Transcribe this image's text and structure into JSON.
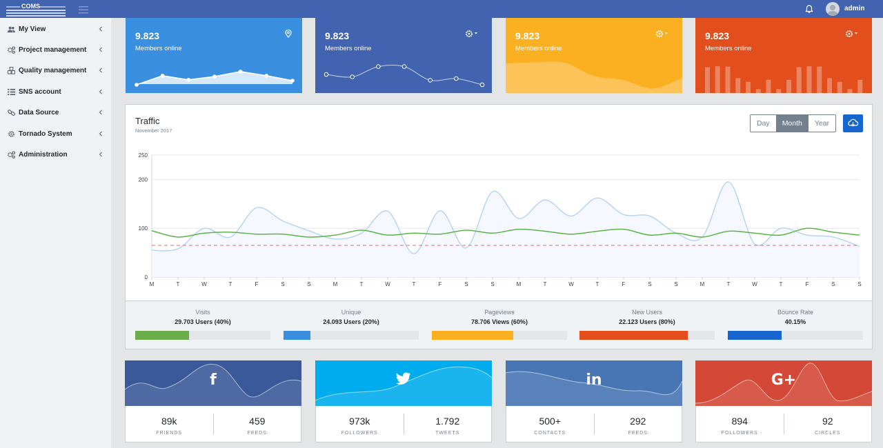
{
  "app": {
    "logo_text": "COMS",
    "user": "admin"
  },
  "sidebar": {
    "items": [
      {
        "label": "My View",
        "icon": "users-icon"
      },
      {
        "label": "Project management",
        "icon": "cogs-icon"
      },
      {
        "label": "Quality management",
        "icon": "cubes-icon"
      },
      {
        "label": "SNS account",
        "icon": "list-icon"
      },
      {
        "label": "Data Source",
        "icon": "link-icon"
      },
      {
        "label": "Tornado System",
        "icon": "gear-icon"
      },
      {
        "label": "Administration",
        "icon": "cogs-icon"
      }
    ]
  },
  "kpis": [
    {
      "value": "9.823",
      "label": "Members online",
      "color": "#3a8fe0",
      "icon": "location-pin-icon",
      "spark": [
        40,
        62,
        52,
        60,
        72,
        62,
        50
      ]
    },
    {
      "value": "9.823",
      "label": "Members online",
      "color": "#4264b0",
      "icon": "gear-dropdown-icon",
      "spark": [
        65,
        59,
        84,
        84,
        51,
        55,
        40
      ]
    },
    {
      "value": "9.823",
      "label": "Members online",
      "color": "#fbb021",
      "icon": "gear-dropdown-icon",
      "spark": [
        78,
        81,
        80,
        45,
        34,
        12,
        40
      ]
    },
    {
      "value": "9.823",
      "label": "Members online",
      "color": "#e24f1d",
      "icon": "gear-dropdown-icon",
      "spark": [
        78,
        81,
        80,
        45,
        34,
        12,
        40,
        12,
        40,
        78,
        81,
        80,
        45,
        34,
        12,
        40
      ]
    }
  ],
  "traffic": {
    "title": "Traffic",
    "subtitle": "November 2017",
    "periods": [
      "Day",
      "Month",
      "Year"
    ],
    "active_period": "Month",
    "stats": [
      {
        "label": "Visits",
        "value": "29.703 Users (40%)",
        "percent": 40,
        "color": "#6aad4a"
      },
      {
        "label": "Unique",
        "value": "24.093 Users (20%)",
        "percent": 20,
        "color": "#3a8fe0"
      },
      {
        "label": "Pageviews",
        "value": "78.706 Views (60%)",
        "percent": 60,
        "color": "#fbb021"
      },
      {
        "label": "New Users",
        "value": "22.123 Users (80%)",
        "percent": 80,
        "color": "#e24f1d"
      },
      {
        "label": "Bounce Rate",
        "value": "40.15%",
        "percent": 40,
        "color": "#1766d0"
      }
    ]
  },
  "chart_data": {
    "type": "line",
    "x": [
      "M",
      "T",
      "W",
      "T",
      "F",
      "S",
      "S",
      "M",
      "T",
      "W",
      "T",
      "F",
      "S",
      "S",
      "M",
      "T",
      "W",
      "T",
      "F",
      "S",
      "S",
      "M",
      "T",
      "W",
      "T",
      "F",
      "S",
      "S"
    ],
    "yticks": [
      0,
      100,
      200,
      250
    ],
    "ylim": [
      0,
      250
    ],
    "grid": true,
    "series": [
      {
        "values": [
          55,
          58,
          100,
          82,
          142,
          115,
          95,
          78,
          90,
          135,
          48,
          136,
          60,
          175,
          120,
          158,
          125,
          162,
          128,
          125,
          90,
          82,
          195,
          68,
          100,
          86,
          82,
          63
        ],
        "color": "#b8d4f5",
        "fill": "#f5f8fe"
      },
      {
        "values": [
          95,
          82,
          90,
          92,
          88,
          88,
          82,
          86,
          96,
          86,
          90,
          88,
          96,
          90,
          98,
          94,
          88,
          94,
          98,
          86,
          90,
          82,
          94,
          90,
          86,
          100,
          92,
          86
        ],
        "color": "#5bb446"
      },
      {
        "values": [
          65,
          65,
          65,
          65,
          65,
          65,
          65,
          65,
          65,
          65,
          65,
          65,
          65,
          65,
          65,
          65,
          65,
          65,
          65,
          65,
          65,
          65,
          65,
          65,
          65,
          65,
          65,
          65
        ],
        "color": "#e86a6a",
        "dashed": true
      }
    ]
  },
  "social": [
    {
      "network": "facebook",
      "glyph": "f",
      "color": "#3b5998",
      "stats": [
        {
          "value": "89k",
          "label": "FRIENDS"
        },
        {
          "value": "459",
          "label": "FEEDS"
        }
      ]
    },
    {
      "network": "twitter",
      "glyph": "🐦",
      "color": "#00aced",
      "stats": [
        {
          "value": "973k",
          "label": "FOLLOWERS"
        },
        {
          "value": "1.792",
          "label": "TWEETS"
        }
      ]
    },
    {
      "network": "linkedin",
      "glyph": "in",
      "color": "#4875b4",
      "stats": [
        {
          "value": "500+",
          "label": "CONTACTS"
        },
        {
          "value": "292",
          "label": "FEEDS"
        }
      ]
    },
    {
      "network": "google-plus",
      "glyph": "G+",
      "color": "#d34836",
      "stats": [
        {
          "value": "894",
          "label": "FOLLOWERS"
        },
        {
          "value": "92",
          "label": "CIRCLES"
        }
      ]
    }
  ]
}
